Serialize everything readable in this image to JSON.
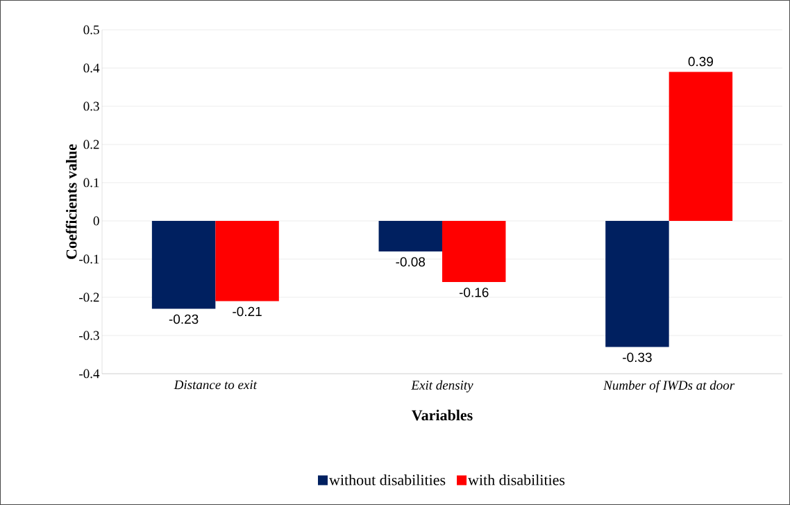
{
  "chart_data": {
    "type": "bar",
    "xlabel": "Variables",
    "ylabel": "Coefficients value",
    "categories": [
      "Distance to exit",
      "Exit density",
      "Number of IWDs at door"
    ],
    "series": [
      {
        "name": "without disabilities",
        "color": "#002060",
        "values": [
          -0.23,
          -0.08,
          -0.33
        ]
      },
      {
        "name": "with disabilities",
        "color": "#ff0000",
        "values": [
          -0.21,
          -0.16,
          0.39
        ]
      }
    ],
    "ylim": [
      -0.4,
      0.5
    ],
    "yticks": [
      -0.4,
      -0.3,
      -0.2,
      -0.1,
      0,
      0.1,
      0.2,
      0.3,
      0.4,
      0.5
    ],
    "grid": "y",
    "legend": "bottom",
    "data_labels": true
  }
}
